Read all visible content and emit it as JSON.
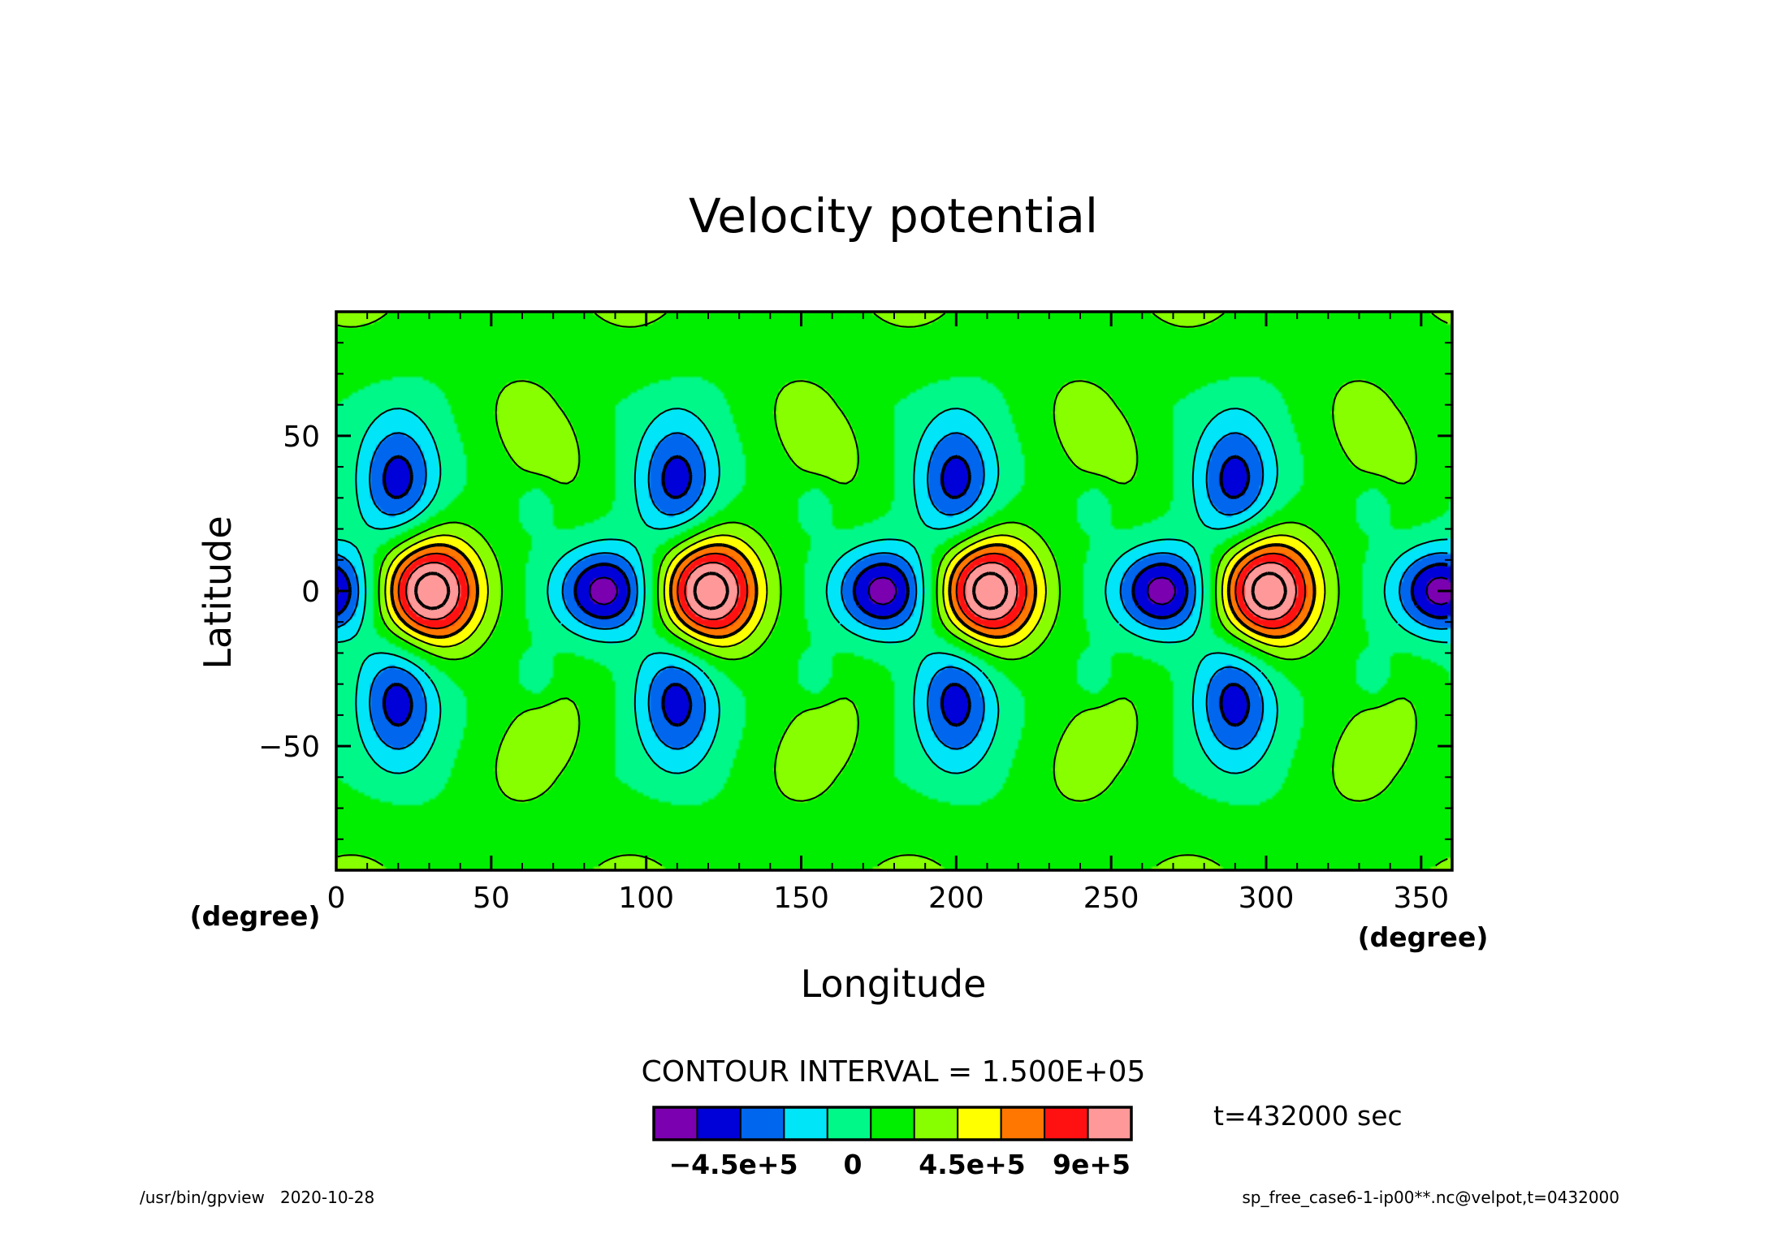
{
  "chart_data": {
    "type": "heatmap",
    "title": "Velocity potential",
    "xlabel": "Longitude",
    "ylabel": "Latitude",
    "x_unit": "(degree)",
    "y_unit": "(degree)",
    "xlim": [
      0,
      360
    ],
    "ylim": [
      -90,
      90
    ],
    "x_ticks": [
      0,
      50,
      100,
      150,
      200,
      250,
      300,
      350
    ],
    "y_ticks": [
      -50,
      0,
      50
    ],
    "x_tick_labels": [
      "0",
      "50",
      "100",
      "150",
      "200",
      "250",
      "300",
      "350"
    ],
    "y_tick_labels": [
      "−50",
      "0",
      "50"
    ],
    "contour_interval_label": "CONTOUR INTERVAL = 1.500E+05",
    "contour_interval": 150000,
    "field_pattern": {
      "zonal_wavenumber": 4,
      "equatorial_maximum": 1050000,
      "equatorial_maximum_longitudes": [
        30,
        120,
        210,
        300
      ],
      "equatorial_minimum": -690000,
      "equatorial_minimum_longitudes": [
        87,
        177,
        267,
        357
      ],
      "midlatitude_minimum": -530000,
      "midlatitude_minimum_longitudes": [
        20,
        110,
        200,
        290
      ],
      "midlatitude_minimum_latitudes": [
        35,
        -35
      ],
      "midlatitude_maximum": 250000,
      "midlatitude_maximum_longitudes": [
        65,
        155,
        245,
        335
      ],
      "midlatitude_maximum_latitudes": [
        50,
        -50
      ],
      "background_value": 0
    },
    "colorbar": {
      "levels": [
        -750000,
        -600000,
        -450000,
        -300000,
        -150000,
        0,
        150000,
        300000,
        450000,
        600000,
        750000,
        900000,
        1050000
      ],
      "colors": [
        "#7b00b0",
        "#0000d8",
        "#0066ee",
        "#00e6f8",
        "#00f888",
        "#00ee00",
        "#88ff00",
        "#ffff00",
        "#ff7700",
        "#ff1111",
        "#ff9999"
      ],
      "tick_labels": [
        "−4.5e+5",
        "0",
        "4.5e+5",
        "9e+5"
      ],
      "tick_values": [
        -450000,
        0,
        450000,
        900000
      ]
    },
    "annotation_time": "t=432000 sec",
    "grid": false
  },
  "footer": {
    "left": "/usr/bin/gpview   2020-10-28",
    "right": "sp_free_case6-1-ip00**.nc@velpot,t=0432000"
  }
}
